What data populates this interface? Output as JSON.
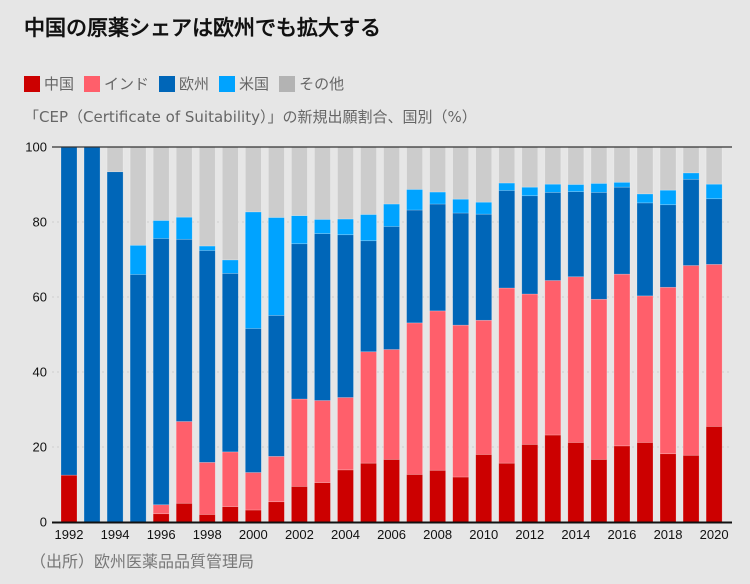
{
  "chart_data": {
    "type": "bar",
    "stacked": true,
    "title": "中国の原薬シェアは欧州でも拡大する",
    "subtitle": "「CEP（Certificate of Suitability）」の新規出願割合、国別（%）",
    "source": "（出所）欧州医薬品品質管理局",
    "xlabel": "",
    "ylabel": "%",
    "ylim": [
      0,
      100
    ],
    "yticks": [
      0,
      20,
      40,
      60,
      80,
      100
    ],
    "grid": true,
    "legend_position": "top-left",
    "categories": [
      "1992",
      "1993",
      "1994",
      "1995",
      "1996",
      "1997",
      "1998",
      "1999",
      "2000",
      "2001",
      "2002",
      "2003",
      "2004",
      "2005",
      "2006",
      "2007",
      "2008",
      "2009",
      "2010",
      "2011",
      "2012",
      "2013",
      "2014",
      "2015",
      "2016",
      "2017",
      "2018",
      "2019",
      "2020"
    ],
    "xtick_labels": [
      "1992",
      "1994",
      "1996",
      "1998",
      "2000",
      "2002",
      "2004",
      "2006",
      "2008",
      "2010",
      "2012",
      "2014",
      "2016",
      "2018",
      "2020"
    ],
    "series": [
      {
        "name": "中国",
        "color": "#cc0000",
        "values": [
          12.5,
          0,
          0,
          0,
          2.2,
          5.0,
          2.0,
          4.1,
          3.2,
          5.4,
          9.5,
          10.5,
          13.9,
          15.7,
          16.7,
          12.7,
          13.8,
          12.0,
          18.0,
          15.7,
          20.7,
          23.2,
          21.2,
          16.7,
          20.3,
          21.2,
          18.2,
          17.8,
          25.5
        ]
      },
      {
        "name": "インド",
        "color": "#ff5f6b",
        "values": [
          0,
          0,
          0,
          0,
          2.4,
          21.8,
          13.9,
          14.6,
          10.0,
          12.1,
          23.3,
          21.9,
          19.3,
          29.7,
          29.3,
          40.4,
          42.5,
          40.5,
          35.8,
          46.7,
          40.1,
          41.2,
          44.2,
          42.7,
          45.8,
          39.1,
          44.4,
          50.6,
          43.2
        ]
      },
      {
        "name": "欧州",
        "color": "#0066b8",
        "values": [
          87.5,
          100,
          93.4,
          66.0,
          71.0,
          48.6,
          56.5,
          47.6,
          38.4,
          37.6,
          41.4,
          44.5,
          43.4,
          29.6,
          32.8,
          30.1,
          28.5,
          29.9,
          28.3,
          26.0,
          26.2,
          23.5,
          22.7,
          28.5,
          23.2,
          24.8,
          22.0,
          23.0,
          17.5
        ]
      },
      {
        "name": "米国",
        "color": "#00a3ff",
        "values": [
          0,
          0,
          0,
          7.8,
          4.8,
          5.9,
          1.2,
          3.6,
          31.1,
          26.1,
          7.5,
          3.8,
          4.2,
          7.0,
          6.0,
          5.5,
          3.2,
          3.7,
          3.2,
          2.0,
          2.3,
          2.2,
          1.9,
          2.4,
          1.3,
          2.4,
          3.9,
          1.7,
          3.9
        ]
      },
      {
        "name": "その他",
        "color": "#cccccc",
        "values": [
          0,
          0,
          6.6,
          26.2,
          19.6,
          18.7,
          26.4,
          30.1,
          17.3,
          18.8,
          18.3,
          19.3,
          19.2,
          18.0,
          15.2,
          11.3,
          12.0,
          13.9,
          14.7,
          9.6,
          10.7,
          9.9,
          10.0,
          9.7,
          9.4,
          12.5,
          11.5,
          6.9,
          9.9
        ]
      }
    ]
  },
  "legend_swatch_colors": {
    "china": "#cc0000",
    "india": "#ff5f6b",
    "europe": "#0066b8",
    "us": "#00a3ff",
    "other": "#b3b3b3"
  }
}
